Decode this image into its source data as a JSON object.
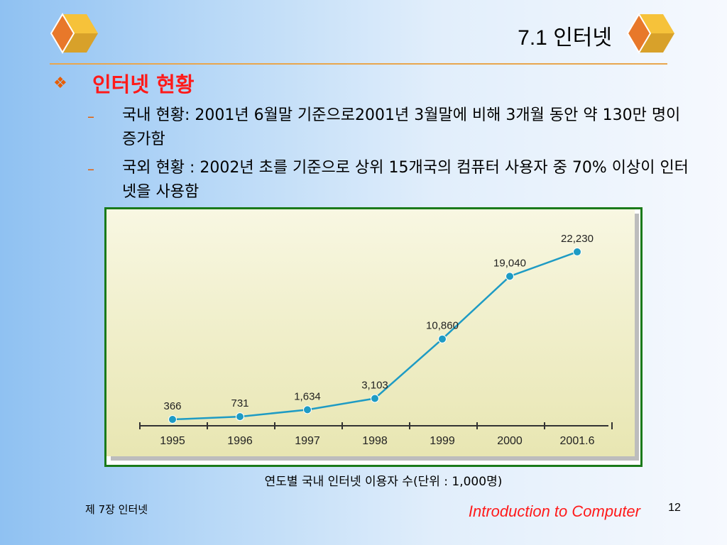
{
  "slide": {
    "title": "7.1 인터넷",
    "heading": "인터넷 현황",
    "heading_bullet": "❖",
    "bullets": [
      {
        "marker": "–",
        "text": "국내 현황: 2001년 6월말 기준으로2001년 3월말에 비해 3개월 동안 약 130만 명이 증가함"
      },
      {
        "marker": "–",
        "text": "국외 현황 : 2002년 초를 기준으로 상위 15개국의 컴퓨터 사용자 중 70% 이상이 인터넷을 사용함"
      }
    ],
    "caption": "연도별 국내 인터넷 이용자 수(단위 : 1,000명)",
    "footer_left": "제 7장 인터넷",
    "footer_center": "Introduction to Computer",
    "page_number": "12"
  },
  "colors": {
    "accent": "#ff1a1a",
    "title_rule": "#e8a64e",
    "chart_border": "#1a7a1a",
    "chart_line": "#1e9bc4",
    "plot_bg": "#f6f4d2"
  },
  "icons": {
    "top_left": "cube-icon",
    "top_right": "cube-icon"
  },
  "chart_data": {
    "type": "line",
    "categories": [
      "1995",
      "1996",
      "1997",
      "1998",
      "1999",
      "2000",
      "2001.6"
    ],
    "values": [
      366,
      731,
      1634,
      3103,
      10860,
      19040,
      22230
    ],
    "value_labels": [
      "366",
      "731",
      "1,634",
      "3,103",
      "10,860",
      "19,040",
      "22,230"
    ],
    "ylim": [
      0,
      25000
    ]
  }
}
